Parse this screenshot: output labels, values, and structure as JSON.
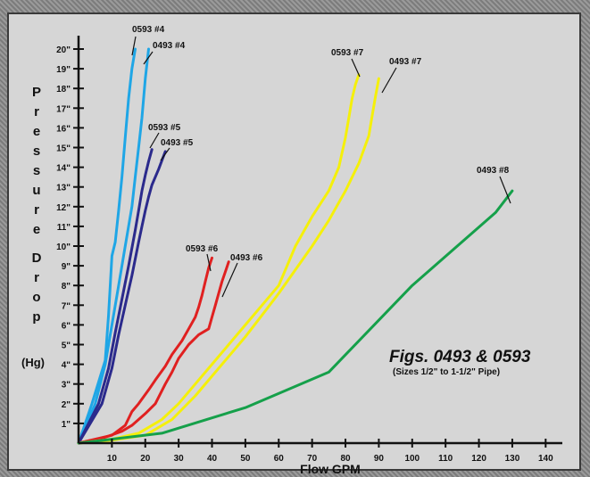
{
  "chart_data": {
    "type": "line",
    "xlabel": "Flow GPM",
    "ylabel_letters": [
      "P",
      "r",
      "e",
      "s",
      "s",
      "u",
      "r",
      "e",
      "",
      "D",
      "r",
      "o",
      "p"
    ],
    "ylabel_unit": "(Hg)",
    "xlim": [
      0,
      145
    ],
    "ylim": [
      0,
      21
    ],
    "x_ticks": [
      10,
      20,
      30,
      40,
      50,
      60,
      70,
      80,
      90,
      100,
      110,
      120,
      130,
      140
    ],
    "x_tick_labels": [
      "10",
      "20",
      "30",
      "40",
      "50",
      "60",
      "70",
      "80",
      "90",
      "100",
      "110",
      "120",
      "130",
      "140"
    ],
    "y_ticks": [
      1,
      2,
      3,
      4,
      5,
      6,
      7,
      8,
      9,
      10,
      11,
      12,
      13,
      14,
      15,
      16,
      17,
      18,
      19,
      20
    ],
    "y_tick_labels": [
      "1\"",
      "2\"",
      "3\"",
      "4\"",
      "5\"",
      "6\"",
      "7\"",
      "8\"",
      "9\"",
      "10\"",
      "11\"",
      "12\"",
      "13\"",
      "14\"",
      "15\"",
      "16\"",
      "17\"",
      "18\"",
      "19\"",
      "20\""
    ],
    "annotation_title": "Figs. 0493 & 0593",
    "annotation_subtitle": "(Sizes 1/2\" to 1-1/2\" Pipe)",
    "series": [
      {
        "name": "0593 #4",
        "color": "#1fa6e6",
        "x": [
          0,
          4,
          8,
          9,
          10,
          11,
          12,
          13,
          14,
          15,
          16,
          17
        ],
        "y": [
          0,
          2,
          4.2,
          6.5,
          9.5,
          10.2,
          11.8,
          13.5,
          15.5,
          17.5,
          19,
          20
        ]
      },
      {
        "name": "0493 #4",
        "color": "#1fa6e6",
        "x": [
          0,
          5,
          8,
          10,
          12,
          14,
          16,
          17,
          18,
          19,
          20,
          21
        ],
        "y": [
          0,
          2,
          4,
          6,
          8,
          10,
          12,
          13.5,
          15,
          16.5,
          18.5,
          20
        ]
      },
      {
        "name": "0593 #5",
        "color": "#2b2a8c",
        "x": [
          0,
          6,
          9,
          11,
          13,
          15,
          17,
          18,
          19,
          20,
          21,
          22
        ],
        "y": [
          0,
          2,
          3.8,
          5.6,
          7.3,
          9,
          10.8,
          11.8,
          12.8,
          13.6,
          14.3,
          14.9
        ]
      },
      {
        "name": "0493 #5",
        "color": "#2b2a8c",
        "x": [
          0,
          7,
          10,
          12,
          14,
          16,
          18,
          19,
          20,
          21,
          22,
          24,
          26
        ],
        "y": [
          0,
          2,
          3.8,
          5.5,
          7,
          8.5,
          10.2,
          11,
          11.8,
          12.5,
          13.1,
          13.9,
          14.8
        ]
      },
      {
        "name": "0593 #6",
        "color": "#e02020",
        "x": [
          0,
          5,
          10,
          14,
          16,
          18,
          21,
          23,
          26,
          28,
          31,
          33,
          35,
          36,
          37,
          38,
          39,
          40
        ],
        "y": [
          0,
          0.2,
          0.4,
          0.9,
          1.6,
          2,
          2.7,
          3.2,
          3.9,
          4.5,
          5.2,
          5.8,
          6.4,
          6.9,
          7.5,
          8.2,
          8.9,
          9.4
        ]
      },
      {
        "name": "0493 #6",
        "color": "#e02020",
        "x": [
          0,
          8,
          13,
          16,
          20,
          23,
          26,
          28,
          30,
          33,
          36,
          39,
          40,
          41,
          42,
          43,
          44,
          45
        ],
        "y": [
          0,
          0.3,
          0.6,
          0.9,
          1.5,
          2,
          3,
          3.6,
          4.3,
          5,
          5.5,
          5.8,
          6.4,
          7,
          7.6,
          8.2,
          8.7,
          9.2
        ]
      },
      {
        "name": "0593 #7",
        "color": "#f5f00a",
        "x": [
          0,
          10,
          18,
          25,
          30,
          35,
          40,
          45,
          50,
          55,
          60,
          65,
          70,
          75,
          78,
          80,
          81,
          82,
          83,
          84
        ],
        "y": [
          0,
          0.2,
          0.5,
          1.2,
          2,
          3,
          4,
          5,
          6,
          7,
          8,
          10,
          11.5,
          12.8,
          14,
          15.5,
          16.5,
          17.5,
          18.2,
          18.7
        ]
      },
      {
        "name": "0493 #7",
        "color": "#f5f00a",
        "x": [
          0,
          10,
          20,
          28,
          35,
          40,
          45,
          50,
          55,
          60,
          65,
          70,
          75,
          80,
          84,
          87,
          88,
          89,
          90
        ],
        "y": [
          0,
          0.15,
          0.4,
          1.2,
          2.4,
          3.4,
          4.4,
          5.4,
          6.5,
          7.6,
          8.8,
          10,
          11.3,
          12.8,
          14.2,
          15.6,
          16.6,
          17.6,
          18.5
        ]
      },
      {
        "name": "0493 #8",
        "color": "#15a04a",
        "x": [
          0,
          10,
          25,
          50,
          75,
          100,
          125,
          130
        ],
        "y": [
          0,
          0.2,
          0.5,
          1.8,
          3.6,
          8,
          11.7,
          12.8
        ]
      }
    ],
    "series_labels": [
      {
        "text": "0593 #4"
      },
      {
        "text": "0493 #4"
      },
      {
        "text": "0593 #5"
      },
      {
        "text": "0493 #5"
      },
      {
        "text": "0593 #6"
      },
      {
        "text": "0493 #6"
      },
      {
        "text": "0593 #7"
      },
      {
        "text": "0493 #7"
      },
      {
        "text": "0493 #8"
      }
    ]
  }
}
